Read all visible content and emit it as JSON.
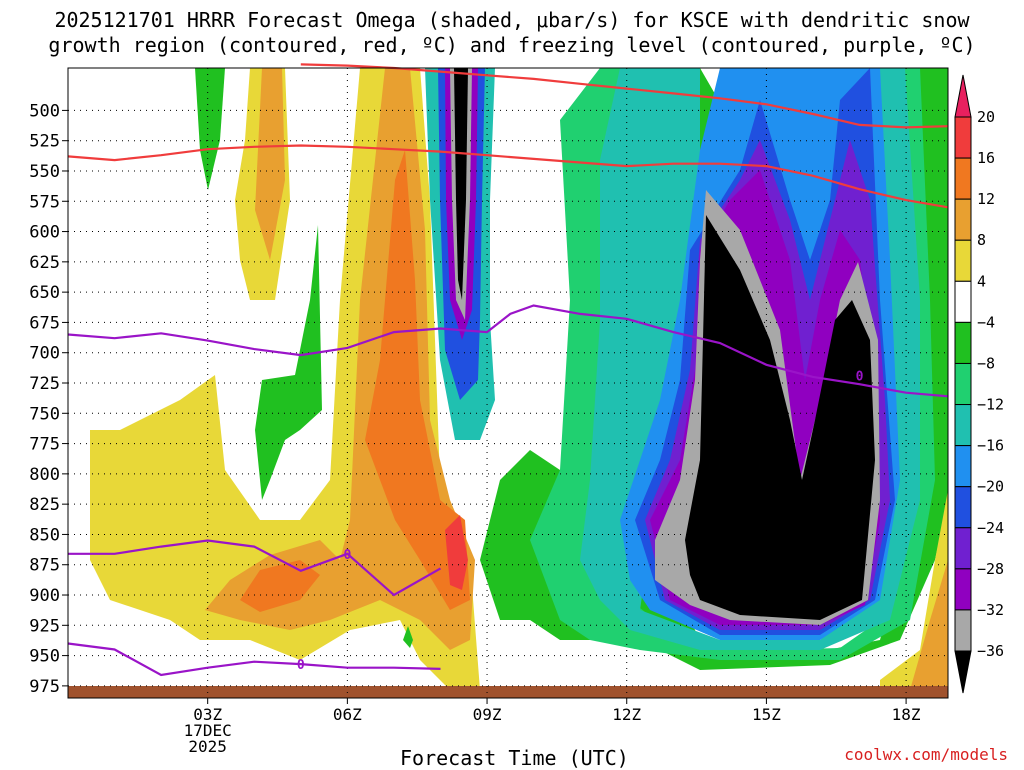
{
  "header": {
    "title_line1": "2025121701 HRRR Forecast Omega (shaded, μbar/s) for KSCE with dendritic snow",
    "title_line2": "growth region (contoured, red, ºC) and freezing level (contoured, purple, ºC)"
  },
  "footer": {
    "credit": "coolwx.com/models"
  },
  "chart_data": {
    "type": "heatmap",
    "xlabel": "Forecast Time (UTC)",
    "x_ticks": [
      "03Z",
      "06Z",
      "09Z",
      "12Z",
      "15Z",
      "18Z"
    ],
    "x_tick_hours": [
      3,
      6,
      9,
      12,
      15,
      18
    ],
    "x_date_label": [
      "17DEC",
      "2025"
    ],
    "xlim": [
      0,
      18.9
    ],
    "ylabel": "",
    "y_ticks": [
      500,
      525,
      550,
      575,
      600,
      625,
      650,
      675,
      700,
      725,
      750,
      775,
      800,
      825,
      850,
      875,
      900,
      925,
      950,
      975
    ],
    "ylim": [
      985,
      465
    ],
    "grid": true,
    "colorbar": {
      "labels": [
        "20",
        "16",
        "12",
        "8",
        "4",
        "-4",
        "-8",
        "-12",
        "-16",
        "-20",
        "-24",
        "-28",
        "-32",
        "-36"
      ],
      "colors": [
        "#e8205f",
        "#f03c3c",
        "#f07820",
        "#e8a030",
        "#e8d838",
        "#ffffff",
        "#20c020",
        "#20d070",
        "#20c0b0",
        "#2090f0",
        "#2050e0",
        "#7020d0",
        "#9000c0",
        "#a8a8a8",
        "#000000"
      ]
    },
    "freezing_level_label": "0",
    "snow_growth_contours": [
      {
        "name": "",
        "x": [
          0.0,
          1.0,
          2.0,
          3.0,
          4.0,
          5.0,
          6.0,
          7.0,
          8.0,
          9.0,
          10.0,
          11.0,
          12.0,
          13.0,
          14.0,
          15.0,
          16.0,
          17.0,
          18.0,
          18.9
        ],
        "p": [
          538,
          541,
          537,
          532,
          530,
          529,
          530,
          532,
          534,
          537,
          540,
          543,
          546,
          544,
          544,
          546,
          554,
          565,
          574,
          580
        ]
      },
      {
        "name": "",
        "x": [
          5.0,
          6.0,
          7.0,
          8.0,
          9.0,
          10.0,
          11.0,
          12.0,
          13.0,
          14.0,
          15.0,
          16.0,
          17.0,
          18.0,
          18.9
        ],
        "p": [
          462,
          463,
          465,
          468,
          471,
          474,
          478,
          482,
          486,
          490,
          495,
          503,
          512,
          514,
          513
        ]
      }
    ],
    "freezing_level_contours": [
      {
        "name": "",
        "x": [
          0.0,
          1.0,
          2.0,
          3.0,
          4.0,
          5.0,
          6.0,
          7.0,
          8.0,
          9.0,
          9.5,
          10.0,
          11.0,
          12.0,
          13.0,
          14.0,
          15.0,
          16.0,
          17.0,
          18.0,
          18.9
        ],
        "p": [
          685,
          688,
          684,
          690,
          697,
          702,
          696,
          683,
          680,
          683,
          668,
          661,
          668,
          672,
          683,
          692,
          710,
          720,
          726,
          733,
          736
        ]
      },
      {
        "name": "",
        "x": [
          0.0,
          1.0,
          2.0,
          3.0,
          4.0,
          5.0,
          6.0,
          7.0,
          8.0
        ],
        "p": [
          866,
          866,
          860,
          855,
          860,
          880,
          866,
          900,
          878
        ]
      },
      {
        "name": "",
        "x": [
          0.0,
          1.0,
          2.0,
          3.0,
          4.0,
          5.0,
          6.0,
          7.0,
          8.0
        ],
        "p": [
          940,
          945,
          966,
          960,
          955,
          957,
          960,
          960,
          961
        ]
      }
    ]
  }
}
